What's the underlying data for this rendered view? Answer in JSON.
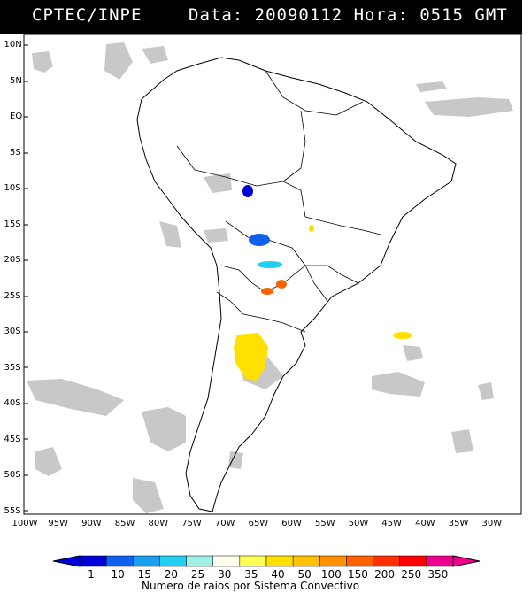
{
  "header": {
    "left_text": "CPTEC/INPE",
    "right_text": "Data: 20090112 Hora: 0515 GMT"
  },
  "axes": {
    "lat_labels": [
      "10N",
      "5N",
      "EQ",
      "5S",
      "10S",
      "15S",
      "20S",
      "25S",
      "30S",
      "35S",
      "40S",
      "45S",
      "50S",
      "55S"
    ],
    "lon_labels": [
      "100W",
      "95W",
      "90W",
      "85W",
      "80W",
      "75W",
      "70W",
      "65W",
      "60W",
      "55W",
      "50W",
      "45W",
      "40W",
      "35W",
      "30W"
    ]
  },
  "colorbar": {
    "labels": [
      "1",
      "10",
      "15",
      "20",
      "25",
      "30",
      "35",
      "40",
      "50",
      "100",
      "150",
      "200",
      "250",
      "350"
    ],
    "colors": [
      "#0000d8",
      "#1060f0",
      "#18a0f0",
      "#20d0f0",
      "#a0f0e8",
      "#fffff0",
      "#ffff50",
      "#ffe000",
      "#ffc000",
      "#ff9000",
      "#ff6000",
      "#ff3000",
      "#ff0000",
      "#f00090"
    ],
    "title": "Numero de raios por Sistema Convectivo"
  },
  "map": {
    "cloud_color": "#c8c8c8",
    "coast_color": "#000000"
  }
}
